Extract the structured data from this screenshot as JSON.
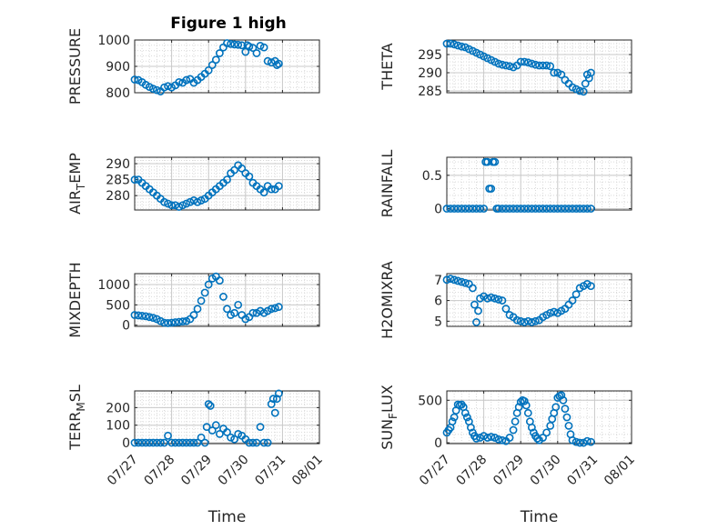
{
  "figure": {
    "title": "Figure 1 high",
    "marker_color": "#0072BD"
  },
  "chart_data": [
    {
      "id": "pressure",
      "type": "scatter",
      "title": "Figure 1 high",
      "ylabel": "PRESSURE",
      "xlabel": "",
      "xlim": [
        0,
        5
      ],
      "ylim": [
        800,
        1000
      ],
      "yticks": [
        800,
        900,
        1000
      ],
      "xtick_labels": [
        "07/27",
        "07/28",
        "07/29",
        "07/30",
        "07/31",
        "08/01"
      ],
      "show_xtick_labels": false,
      "grid": true,
      "minor_grid": true,
      "x": [
        0,
        0.1,
        0.2,
        0.3,
        0.4,
        0.5,
        0.6,
        0.7,
        0.8,
        0.9,
        1.0,
        1.1,
        1.2,
        1.3,
        1.4,
        1.5,
        1.6,
        1.7,
        1.8,
        1.9,
        2.0,
        2.1,
        2.2,
        2.3,
        2.4,
        2.5,
        2.6,
        2.7,
        2.8,
        2.9,
        3.0,
        3.05,
        3.1,
        3.2,
        3.3,
        3.4,
        3.5,
        3.6,
        3.7,
        3.8,
        3.85,
        3.9
      ],
      "y": [
        850,
        848,
        840,
        830,
        822,
        815,
        810,
        805,
        820,
        825,
        820,
        828,
        840,
        838,
        848,
        852,
        838,
        848,
        860,
        872,
        885,
        905,
        925,
        950,
        972,
        988,
        985,
        983,
        982,
        980,
        955,
        980,
        975,
        970,
        950,
        978,
        972,
        920,
        915,
        920,
        905,
        910
      ]
    },
    {
      "id": "theta",
      "type": "scatter",
      "title": "",
      "ylabel": "THETA",
      "xlabel": "",
      "xlim": [
        0,
        5
      ],
      "ylim": [
        284.5,
        299
      ],
      "yticks": [
        285,
        290,
        295
      ],
      "xtick_labels": [
        "07/27",
        "07/28",
        "07/29",
        "07/30",
        "07/31",
        "08/01"
      ],
      "show_xtick_labels": false,
      "grid": true,
      "minor_grid": true,
      "x": [
        0,
        0.1,
        0.2,
        0.3,
        0.4,
        0.5,
        0.6,
        0.7,
        0.8,
        0.9,
        1.0,
        1.1,
        1.2,
        1.3,
        1.4,
        1.5,
        1.6,
        1.7,
        1.8,
        1.9,
        2.0,
        2.1,
        2.2,
        2.3,
        2.4,
        2.5,
        2.6,
        2.7,
        2.8,
        2.9,
        3.0,
        3.1,
        3.2,
        3.3,
        3.4,
        3.5,
        3.6,
        3.7,
        3.75,
        3.8,
        3.85,
        3.9
      ],
      "y": [
        298,
        298,
        297.8,
        297.5,
        297.2,
        297,
        296.5,
        296,
        295.5,
        295,
        294.5,
        294,
        293.5,
        293,
        292.5,
        292.2,
        292,
        291.8,
        291.5,
        292,
        293,
        293,
        292.8,
        292.5,
        292.2,
        292,
        292,
        292,
        291.8,
        290,
        290,
        289.5,
        288,
        287,
        286,
        285.5,
        285,
        284.8,
        287,
        289.5,
        288.5,
        290
      ]
    },
    {
      "id": "air_temp",
      "type": "scatter",
      "title": "",
      "ylabel": "AIR_TEMP",
      "xlabel": "",
      "xlim": [
        0,
        5
      ],
      "ylim": [
        275.5,
        292
      ],
      "yticks": [
        280,
        285,
        290
      ],
      "xtick_labels": [
        "07/27",
        "07/28",
        "07/29",
        "07/30",
        "07/31",
        "08/01"
      ],
      "show_xtick_labels": false,
      "grid": true,
      "minor_grid": true,
      "x": [
        0,
        0.1,
        0.2,
        0.3,
        0.4,
        0.5,
        0.6,
        0.7,
        0.8,
        0.9,
        1.0,
        1.1,
        1.2,
        1.3,
        1.4,
        1.5,
        1.6,
        1.7,
        1.8,
        1.9,
        2.0,
        2.1,
        2.2,
        2.3,
        2.4,
        2.5,
        2.6,
        2.7,
        2.8,
        2.9,
        3.0,
        3.1,
        3.2,
        3.3,
        3.4,
        3.5,
        3.6,
        3.7,
        3.8,
        3.9
      ],
      "y": [
        285,
        285,
        284,
        283,
        282,
        281,
        280,
        279,
        278,
        277.5,
        277,
        277,
        276.5,
        277,
        277.5,
        278,
        278.5,
        278,
        278.5,
        279,
        280,
        281,
        282,
        283,
        284,
        285,
        287,
        288,
        289.5,
        288.5,
        287,
        286,
        284,
        283,
        282,
        281,
        283,
        282,
        282,
        283
      ]
    },
    {
      "id": "rainfall",
      "type": "scatter",
      "title": "",
      "ylabel": "RAINFALL",
      "xlabel": "",
      "xlim": [
        0,
        5
      ],
      "ylim": [
        -0.02,
        0.77
      ],
      "yticks": [
        0,
        0.5
      ],
      "xtick_labels": [
        "07/27",
        "07/28",
        "07/29",
        "07/30",
        "07/31",
        "08/01"
      ],
      "show_xtick_labels": false,
      "grid": true,
      "minor_grid": true,
      "x": [
        0,
        0.1,
        0.2,
        0.3,
        0.4,
        0.5,
        0.6,
        0.7,
        0.8,
        0.9,
        1.0,
        1.05,
        1.1,
        1.15,
        1.2,
        1.25,
        1.3,
        1.35,
        1.4,
        1.5,
        1.6,
        1.7,
        1.8,
        1.9,
        2.0,
        2.1,
        2.2,
        2.3,
        2.4,
        2.5,
        2.6,
        2.7,
        2.8,
        2.9,
        3.0,
        3.1,
        3.2,
        3.3,
        3.4,
        3.5,
        3.6,
        3.7,
        3.8,
        3.9
      ],
      "y": [
        0,
        0,
        0,
        0,
        0,
        0,
        0,
        0,
        0,
        0,
        0,
        0.7,
        0.7,
        0.3,
        0.3,
        0.7,
        0.7,
        0,
        0,
        0,
        0,
        0,
        0,
        0,
        0,
        0,
        0,
        0,
        0,
        0,
        0,
        0,
        0,
        0,
        0,
        0,
        0,
        0,
        0,
        0,
        0,
        0,
        0,
        0
      ]
    },
    {
      "id": "mixdepth",
      "type": "scatter",
      "title": "",
      "ylabel": "MIXDEPTH",
      "xlabel": "",
      "xlim": [
        0,
        5
      ],
      "ylim": [
        -30,
        1270
      ],
      "yticks": [
        0,
        500,
        1000
      ],
      "xtick_labels": [
        "07/27",
        "07/28",
        "07/29",
        "07/30",
        "07/31",
        "08/01"
      ],
      "show_xtick_labels": false,
      "grid": true,
      "minor_grid": true,
      "x": [
        0,
        0.1,
        0.2,
        0.3,
        0.4,
        0.5,
        0.6,
        0.7,
        0.8,
        0.9,
        1.0,
        1.1,
        1.2,
        1.3,
        1.4,
        1.5,
        1.6,
        1.7,
        1.8,
        1.9,
        2.0,
        2.1,
        2.2,
        2.3,
        2.4,
        2.5,
        2.6,
        2.7,
        2.8,
        2.9,
        3.0,
        3.1,
        3.2,
        3.3,
        3.4,
        3.5,
        3.6,
        3.7,
        3.8,
        3.9
      ],
      "y": [
        250,
        240,
        230,
        220,
        200,
        180,
        150,
        100,
        60,
        50,
        60,
        70,
        80,
        90,
        100,
        150,
        250,
        400,
        600,
        800,
        1000,
        1150,
        1200,
        1100,
        700,
        400,
        250,
        300,
        500,
        250,
        150,
        200,
        300,
        300,
        350,
        300,
        350,
        400,
        420,
        450
      ]
    },
    {
      "id": "h2omixra",
      "type": "scatter",
      "title": "",
      "ylabel": "H2OMIXRA",
      "xlabel": "",
      "xlim": [
        0,
        5
      ],
      "ylim": [
        4.75,
        7.3
      ],
      "yticks": [
        5,
        6,
        7
      ],
      "xtick_labels": [
        "07/27",
        "07/28",
        "07/29",
        "07/30",
        "07/31",
        "08/01"
      ],
      "show_xtick_labels": false,
      "grid": true,
      "minor_grid": true,
      "x": [
        0,
        0.1,
        0.2,
        0.3,
        0.4,
        0.5,
        0.6,
        0.7,
        0.75,
        0.8,
        0.85,
        0.9,
        1.0,
        1.1,
        1.2,
        1.3,
        1.4,
        1.5,
        1.6,
        1.7,
        1.8,
        1.9,
        2.0,
        2.1,
        2.2,
        2.3,
        2.4,
        2.5,
        2.6,
        2.7,
        2.8,
        2.9,
        3.0,
        3.1,
        3.2,
        3.3,
        3.4,
        3.5,
        3.6,
        3.7,
        3.8,
        3.9
      ],
      "y": [
        7,
        7.05,
        7,
        6.95,
        6.9,
        6.85,
        6.8,
        6.6,
        5.8,
        4.95,
        5.5,
        6.1,
        6.2,
        6.1,
        6.15,
        6.1,
        6.05,
        6.0,
        5.6,
        5.3,
        5.2,
        5.05,
        5.0,
        4.95,
        5.0,
        4.95,
        5.0,
        5.05,
        5.2,
        5.3,
        5.4,
        5.45,
        5.4,
        5.5,
        5.6,
        5.8,
        6.0,
        6.3,
        6.6,
        6.7,
        6.8,
        6.7
      ]
    },
    {
      "id": "terr_msl",
      "type": "scatter",
      "title": "",
      "ylabel": "TERR_MSL",
      "xlabel": "Time",
      "xlim": [
        0,
        5
      ],
      "ylim": [
        -5,
        295
      ],
      "yticks": [
        0,
        100,
        200
      ],
      "xtick_labels": [
        "07/27",
        "07/28",
        "07/29",
        "07/30",
        "07/31",
        "08/01"
      ],
      "show_xtick_labels": true,
      "grid": true,
      "minor_grid": true,
      "x": [
        0,
        0.1,
        0.2,
        0.3,
        0.4,
        0.5,
        0.6,
        0.7,
        0.8,
        0.9,
        1.0,
        1.1,
        1.2,
        1.3,
        1.4,
        1.5,
        1.6,
        1.7,
        1.8,
        1.9,
        1.95,
        2.0,
        2.05,
        2.1,
        2.2,
        2.3,
        2.4,
        2.5,
        2.6,
        2.7,
        2.8,
        2.9,
        3.0,
        3.1,
        3.2,
        3.3,
        3.4,
        3.5,
        3.6,
        3.7,
        3.75,
        3.8,
        3.85,
        3.9
      ],
      "y": [
        0,
        0,
        0,
        0,
        0,
        0,
        0,
        0,
        0,
        40,
        0,
        0,
        0,
        0,
        0,
        0,
        0,
        0,
        30,
        0,
        90,
        220,
        210,
        70,
        100,
        50,
        80,
        60,
        30,
        20,
        50,
        40,
        20,
        0,
        0,
        0,
        90,
        0,
        0,
        220,
        250,
        170,
        250,
        280
      ]
    },
    {
      "id": "sun_flux",
      "type": "scatter",
      "title": "",
      "ylabel": "SUN_FLUX",
      "xlabel": "Time",
      "xlim": [
        0,
        5
      ],
      "ylim": [
        -10,
        610
      ],
      "yticks": [
        0,
        500
      ],
      "xtick_labels": [
        "07/27",
        "07/28",
        "07/29",
        "07/30",
        "07/31",
        "08/01"
      ],
      "show_xtick_labels": true,
      "grid": true,
      "minor_grid": true,
      "x": [
        0,
        0.05,
        0.1,
        0.15,
        0.2,
        0.25,
        0.3,
        0.35,
        0.4,
        0.45,
        0.5,
        0.55,
        0.6,
        0.65,
        0.7,
        0.75,
        0.8,
        0.9,
        1.0,
        1.1,
        1.2,
        1.3,
        1.4,
        1.5,
        1.6,
        1.7,
        1.8,
        1.85,
        1.9,
        1.95,
        2.0,
        2.05,
        2.1,
        2.15,
        2.2,
        2.25,
        2.3,
        2.35,
        2.4,
        2.45,
        2.5,
        2.6,
        2.7,
        2.8,
        2.85,
        2.9,
        2.95,
        3.0,
        3.05,
        3.1,
        3.15,
        3.2,
        3.25,
        3.3,
        3.35,
        3.4,
        3.5,
        3.6,
        3.7,
        3.8,
        3.9
      ],
      "y": [
        120,
        150,
        180,
        250,
        300,
        380,
        450,
        440,
        450,
        420,
        350,
        300,
        250,
        180,
        120,
        80,
        50,
        60,
        80,
        60,
        70,
        60,
        40,
        30,
        20,
        60,
        150,
        250,
        350,
        420,
        480,
        500,
        490,
        440,
        350,
        250,
        180,
        120,
        80,
        50,
        30,
        60,
        120,
        200,
        280,
        350,
        420,
        530,
        550,
        560,
        500,
        400,
        300,
        200,
        100,
        30,
        10,
        0,
        0,
        20,
        10
      ]
    }
  ]
}
